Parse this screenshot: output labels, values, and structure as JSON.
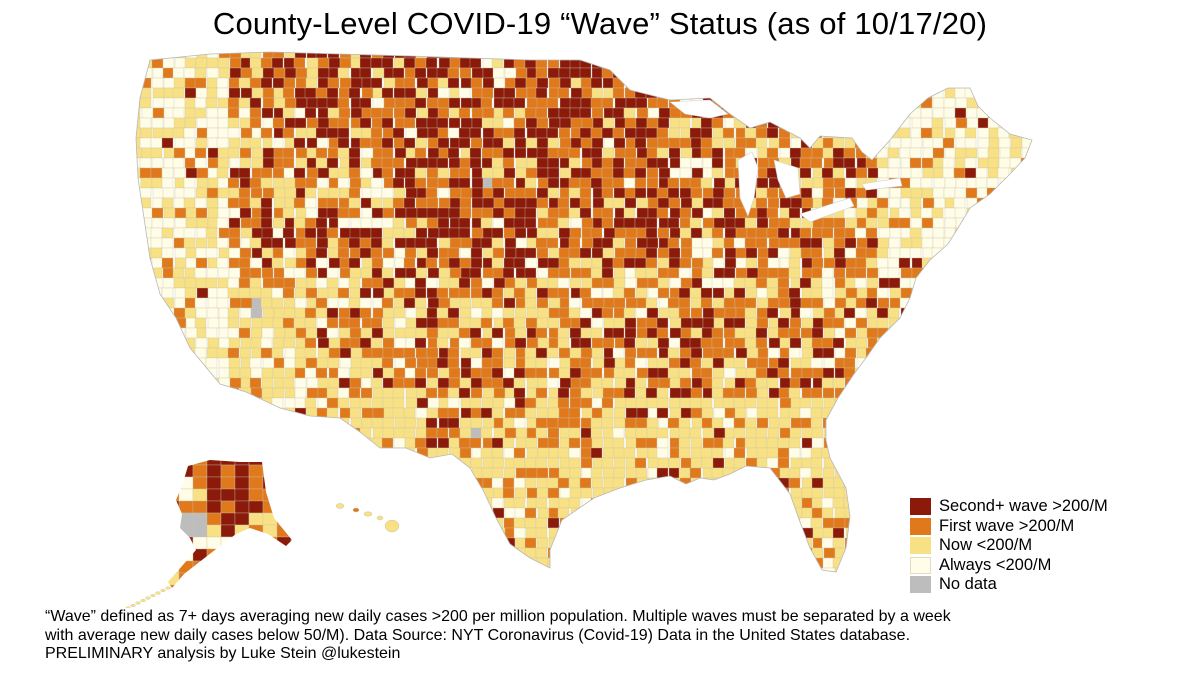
{
  "title": "County-Level COVID-19 “Wave” Status (as of 10/17/20)",
  "legend": [
    {
      "label": "Second+ wave >200/M",
      "color": "#8B1A0B",
      "key": "second"
    },
    {
      "label": "First wave >200/M",
      "color": "#E0781C",
      "key": "first"
    },
    {
      "label": "Now <200/M",
      "color": "#F8E184",
      "key": "now"
    },
    {
      "label": "Always <200/M",
      "color": "#FFFDE8",
      "key": "always"
    },
    {
      "label": "No data",
      "color": "#BDBDBD",
      "key": "nodata"
    }
  ],
  "footnote": [
    "“Wave” defined as 7+ days averaging new daily cases >200 per million population. Multiple waves must be separated by a week",
    "with average new daily cases below 50/M). Data Source: NYT Coronavirus (Covid-19) Data in the United States database.",
    "PRELIMINARY analysis by Luke Stein @lukestein"
  ]
}
